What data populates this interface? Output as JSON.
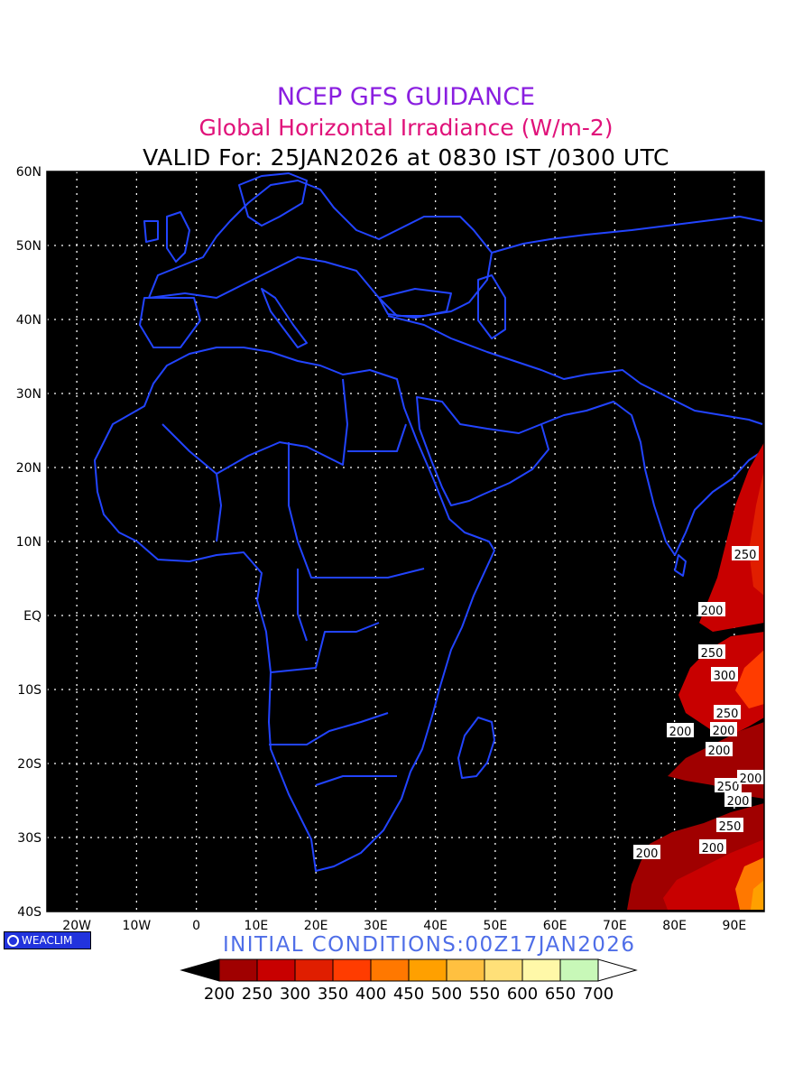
{
  "header": {
    "line1": "NCEP GFS GUIDANCE",
    "line2": "Global Horizontal Irradiance (W/m-2)",
    "line3": "VALID For: 25JAN2026 at 0830 IST /0300 UTC"
  },
  "map": {
    "lat_labels": [
      "60N",
      "50N",
      "40N",
      "30N",
      "20N",
      "10N",
      "EQ",
      "10S",
      "20S",
      "30S",
      "40S"
    ],
    "lon_labels": [
      "20W",
      "10W",
      "0",
      "10E",
      "20E",
      "30E",
      "40E",
      "50E",
      "60E",
      "70E",
      "80E",
      "90E"
    ],
    "lat_range": [
      -40,
      60
    ],
    "lon_range": [
      -25,
      95
    ],
    "background_color": "#000000",
    "coastline_color": "#2244ff",
    "grid": "dotted"
  },
  "contour_labels": [
    "250",
    "200",
    "250",
    "300",
    "250",
    "200",
    "200",
    "200",
    "250",
    "200",
    "250",
    "200",
    "200",
    "200"
  ],
  "colorbar": {
    "levels": [
      "200",
      "250",
      "300",
      "350",
      "400",
      "450",
      "500",
      "550",
      "600",
      "650",
      "700"
    ],
    "colors": [
      "#000000",
      "#a00000",
      "#c80000",
      "#e01e00",
      "#ff3c00",
      "#ff7800",
      "#ffa000",
      "#ffc040",
      "#ffe078",
      "#fff8a8",
      "#c8f8b8",
      "#ffffff"
    ]
  },
  "footer": {
    "brand": "WEACLIM",
    "brand_color": "#2233dd",
    "initial_conditions": "INITIAL CONDITIONS:00Z17JAN2026"
  }
}
